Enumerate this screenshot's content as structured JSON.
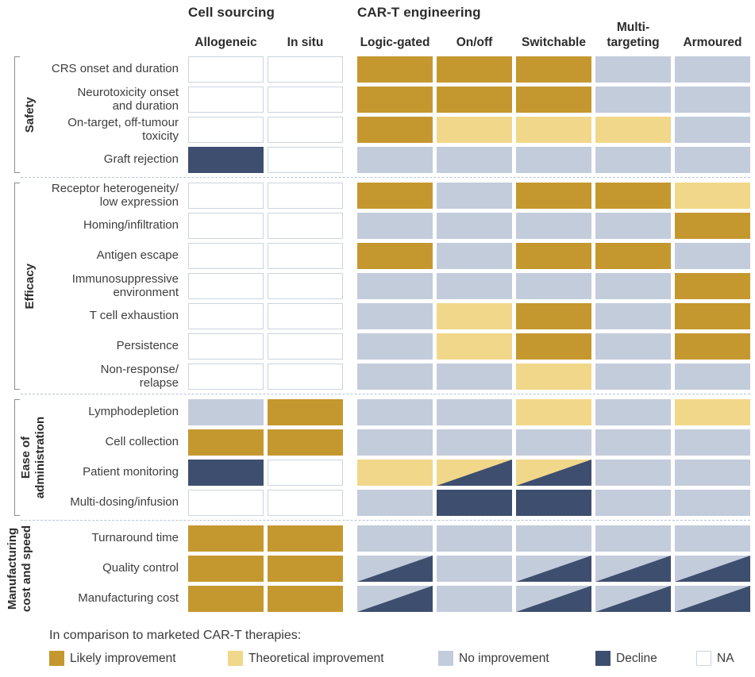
{
  "figure": {
    "group_titles": {
      "cell_sourcing": "Cell sourcing",
      "engineering": "CAR-T engineering"
    },
    "column_labels": [
      "Allogeneic",
      "In situ",
      "Logic-gated",
      "On/off",
      "Switchable",
      "Multi-\ntargeting",
      "Armoured"
    ]
  },
  "palette": {
    "likely": "#C5982F",
    "theoretical": "#F1D78A",
    "none": "#C3CCDB",
    "decline": "#3E4E6E",
    "na": "#FFFFFF",
    "na_border": "#CBD4DF",
    "divider": "#B6C3D5",
    "bracket": "#8C8C8C",
    "heading_text": "#2C2C2C",
    "body_text": "#3E3E3E"
  },
  "legend": {
    "intro": "In comparison to marketed CAR-T therapies:",
    "items": [
      {
        "label": "Likely improvement",
        "value": "likely"
      },
      {
        "label": "Theoretical improvement",
        "value": "theoretical"
      },
      {
        "label": "No improvement",
        "value": "none"
      },
      {
        "label": "Decline",
        "value": "decline"
      },
      {
        "label": "NA",
        "value": "na"
      }
    ]
  },
  "chart_data": {
    "type": "heatmap",
    "columns": [
      "Allogeneic",
      "In situ",
      "Logic-gated",
      "On/off",
      "Switchable",
      "Multi-targeting",
      "Armoured"
    ],
    "column_groups": [
      {
        "label": "Cell sourcing",
        "columns": [
          "Allogeneic",
          "In situ"
        ]
      },
      {
        "label": "CAR-T engineering",
        "columns": [
          "Logic-gated",
          "On/off",
          "Switchable",
          "Multi-targeting",
          "Armoured"
        ]
      }
    ],
    "value_legend": {
      "likely": "Likely improvement",
      "theoretical": "Theoretical improvement",
      "none": "No improvement",
      "decline": "Decline",
      "na": "NA"
    },
    "sections": [
      {
        "group": "Safety",
        "bracket": true,
        "rows": [
          {
            "label": "CRS onset and duration",
            "values": [
              "na",
              "na",
              "likely",
              "likely",
              "likely",
              "none",
              "none"
            ]
          },
          {
            "label": "Neurotoxicity onset\nand duration",
            "values": [
              "na",
              "na",
              "likely",
              "likely",
              "likely",
              "none",
              "none"
            ]
          },
          {
            "label": "On-target, off-tumour\ntoxicity",
            "values": [
              "na",
              "na",
              "likely",
              "theoretical",
              "theoretical",
              "theoretical",
              "none"
            ]
          },
          {
            "label": "Graft rejection",
            "values": [
              "decline",
              "na",
              "none",
              "none",
              "none",
              "none",
              "none"
            ]
          }
        ]
      },
      {
        "group": "Efficacy",
        "bracket": true,
        "rows": [
          {
            "label": "Receptor heterogeneity/\nlow expression",
            "values": [
              "na",
              "na",
              "likely",
              "none",
              "likely",
              "likely",
              "theoretical"
            ]
          },
          {
            "label": "Homing/infiltration",
            "values": [
              "na",
              "na",
              "none",
              "none",
              "none",
              "none",
              "likely"
            ]
          },
          {
            "label": "Antigen escape",
            "values": [
              "na",
              "na",
              "likely",
              "none",
              "likely",
              "likely",
              "none"
            ]
          },
          {
            "label": "Immunosuppressive\nenvironment",
            "values": [
              "na",
              "na",
              "none",
              "none",
              "none",
              "none",
              "likely"
            ]
          },
          {
            "label": "T cell exhaustion",
            "values": [
              "na",
              "na",
              "none",
              "theoretical",
              "likely",
              "none",
              "likely"
            ]
          },
          {
            "label": "Persistence",
            "values": [
              "na",
              "na",
              "none",
              "theoretical",
              "likely",
              "none",
              "likely"
            ]
          },
          {
            "label": "Non-response/\nrelapse",
            "values": [
              "na",
              "na",
              "none",
              "none",
              "theoretical",
              "none",
              "none"
            ]
          }
        ]
      },
      {
        "group": "Ease of\nadministration",
        "bracket": true,
        "rows": [
          {
            "label": "Lymphodepletion",
            "values": [
              "none",
              "likely",
              "none",
              "none",
              "theoretical",
              "none",
              "theoretical"
            ]
          },
          {
            "label": "Cell collection",
            "values": [
              "likely",
              "likely",
              "none",
              "none",
              "none",
              "none",
              "none"
            ]
          },
          {
            "label": "Patient monitoring",
            "values": [
              "decline",
              "na",
              "theoretical",
              "theoretical/decline",
              "theoretical/decline",
              "none",
              "none"
            ]
          },
          {
            "label": "Multi-dosing/infusion",
            "values": [
              "na",
              "na",
              "none",
              "decline",
              "decline",
              "none",
              "none"
            ]
          }
        ]
      },
      {
        "group": "Manufacturing\ncost and speed",
        "bracket": false,
        "rows": [
          {
            "label": "Turnaround time",
            "values": [
              "likely",
              "likely",
              "none",
              "none",
              "none",
              "none",
              "none"
            ]
          },
          {
            "label": "Quality control",
            "values": [
              "likely",
              "likely",
              "none/decline",
              "none",
              "none/decline",
              "none/decline",
              "none/decline"
            ]
          },
          {
            "label": "Manufacturing cost",
            "values": [
              "likely",
              "likely",
              "none/decline",
              "none",
              "none/decline",
              "none/decline",
              "none/decline"
            ]
          }
        ]
      }
    ]
  }
}
